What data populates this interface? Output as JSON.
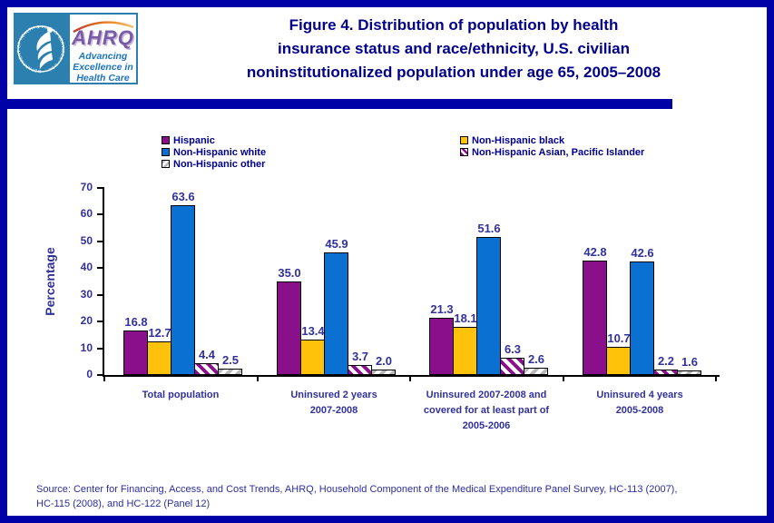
{
  "colors": {
    "frame_navy": "#0101A8",
    "title_navy": "#00008B",
    "chart_text_navy": "#31319C",
    "logo_teal": "#2B80B0",
    "ahrq_purple": "#7A5BA5",
    "tagline_blue": "#1B74BE"
  },
  "header": {
    "title_lines": [
      "Figure 4. Distribution of population by health",
      "insurance status and race/ethnicity, U.S. civilian",
      "noninstitutionalized population under age 65, 2005–2008"
    ],
    "logo": {
      "org": "AHRQ",
      "tagline_lines": [
        "Advancing",
        "Excellence in",
        "Health Care"
      ],
      "seal_text": "DEPARTMENT OF HEALTH & HUMAN SERVICES • USA"
    }
  },
  "chart_data": {
    "type": "bar",
    "ylabel": "Percentage",
    "ylim": [
      0,
      70
    ],
    "yticks": [
      0,
      10,
      20,
      30,
      40,
      50,
      60,
      70
    ],
    "grid": false,
    "legend_position": "top",
    "categories": [
      [
        "Total population"
      ],
      [
        "Uninsured 2 years",
        "2007-2008"
      ],
      [
        "Uninsured 2007-2008 and",
        "covered for at least part of",
        "2005-2006"
      ],
      [
        "Uninsured 4 years",
        "2005-2008"
      ]
    ],
    "series": [
      {
        "name": "Hispanic",
        "color": "#8A0F8A",
        "pattern": "solid",
        "values": [
          16.8,
          35.0,
          21.3,
          42.8
        ]
      },
      {
        "name": "Non-Hispanic black",
        "color": "#FFC20A",
        "pattern": "solid",
        "values": [
          12.7,
          13.4,
          18.1,
          10.7
        ]
      },
      {
        "name": "Non-Hispanic white",
        "color": "#0A70D2",
        "pattern": "solid",
        "values": [
          63.6,
          45.9,
          51.6,
          42.6
        ]
      },
      {
        "name": "Non-Hispanic Asian, Pacific Islander",
        "color": "#8A0F8A",
        "pattern": "hatch-back",
        "values": [
          4.4,
          3.7,
          6.3,
          2.2
        ]
      },
      {
        "name": "Non-Hispanic other",
        "color": "#B8B8B8",
        "pattern": "hatch-fwd",
        "values": [
          2.5,
          2.0,
          2.6,
          1.6
        ]
      }
    ],
    "legend_columns": [
      [
        "Hispanic",
        "Non-Hispanic white",
        "Non-Hispanic other"
      ],
      [
        "Non-Hispanic black",
        "Non-Hispanic Asian, Pacific Islander"
      ]
    ]
  },
  "source_lines": [
    "Source: Center for Financing, Access, and Cost Trends, AHRQ, Household Component of the Medical Expenditure Panel Survey, HC-113 (2007),",
    "HC-115 (2008), and HC-122 (Panel 12)"
  ]
}
